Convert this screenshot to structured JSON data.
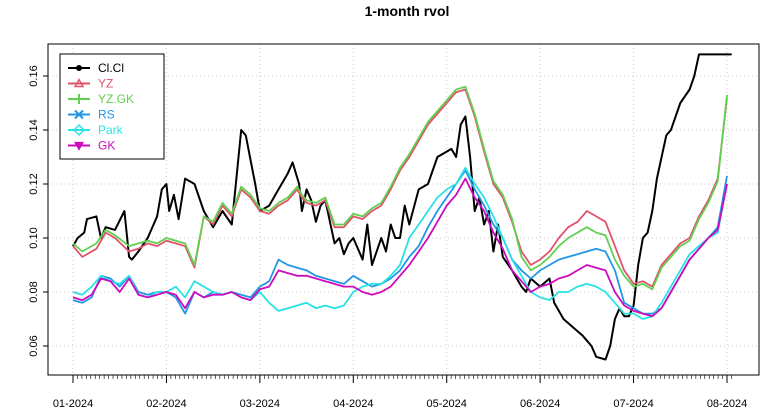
{
  "chart_data": {
    "type": "line",
    "title": "1-month rvol",
    "xlabel": "",
    "ylabel": "",
    "ylim": [
      0.05,
      0.17
    ],
    "yticks": [
      0.06,
      0.08,
      0.1,
      0.12,
      0.14,
      0.16
    ],
    "ytick_labels": [
      "0.06",
      "0.08",
      "0.10",
      "0.12",
      "0.14",
      "0.16"
    ],
    "xlim": [
      0,
      7.65
    ],
    "xticks": [
      0,
      1,
      2,
      3,
      4,
      5,
      6,
      7
    ],
    "xtick_labels": [
      "01-2024",
      "02-2024",
      "03-2024",
      "04-2024",
      "05-2024",
      "06-2024",
      "07-2024",
      "08-2024"
    ],
    "grid": true,
    "legend": {
      "position": "top-left"
    },
    "series": [
      {
        "name": "Cl.Cl",
        "color": "#000000",
        "marker": "circle",
        "x": [
          0,
          0.05,
          0.12,
          0.15,
          0.25,
          0.3,
          0.35,
          0.45,
          0.55,
          0.6,
          0.63,
          0.7,
          0.8,
          0.9,
          0.95,
          1.0,
          1.03,
          1.08,
          1.13,
          1.2,
          1.3,
          1.4,
          1.5,
          1.6,
          1.7,
          1.8,
          1.85,
          1.95,
          2.0,
          2.1,
          2.2,
          2.3,
          2.35,
          2.42,
          2.45,
          2.5,
          2.55,
          2.6,
          2.65,
          2.7,
          2.8,
          2.85,
          2.9,
          2.95,
          3.0,
          3.1,
          3.15,
          3.2,
          3.3,
          3.35,
          3.4,
          3.45,
          3.5,
          3.55,
          3.6,
          3.7,
          3.8,
          3.9,
          4.0,
          4.05,
          4.1,
          4.15,
          4.2,
          4.25,
          4.3,
          4.35,
          4.4,
          4.45,
          4.5,
          4.55,
          4.6,
          4.7,
          4.8,
          4.85,
          4.9,
          5.0,
          5.1,
          5.15,
          5.25,
          5.35,
          5.45,
          5.55,
          5.6,
          5.7,
          5.75,
          5.8,
          5.85,
          5.9,
          5.95,
          6.0,
          6.05,
          6.1,
          6.15,
          6.2,
          6.25,
          6.3,
          6.35,
          6.4,
          6.45,
          6.5,
          6.6,
          6.65,
          6.7,
          6.8,
          6.85,
          6.9,
          6.95,
          7.0,
          7.05
        ],
        "y": [
          0.097,
          0.1,
          0.102,
          0.107,
          0.108,
          0.1,
          0.104,
          0.103,
          0.11,
          0.093,
          0.092,
          0.095,
          0.1,
          0.108,
          0.118,
          0.12,
          0.11,
          0.116,
          0.107,
          0.122,
          0.12,
          0.11,
          0.104,
          0.11,
          0.105,
          0.14,
          0.138,
          0.12,
          0.11,
          0.112,
          0.118,
          0.124,
          0.128,
          0.12,
          0.11,
          0.118,
          0.114,
          0.106,
          0.112,
          0.114,
          0.098,
          0.1,
          0.094,
          0.098,
          0.1,
          0.092,
          0.105,
          0.09,
          0.1,
          0.095,
          0.105,
          0.1,
          0.1,
          0.112,
          0.105,
          0.118,
          0.12,
          0.13,
          0.132,
          0.133,
          0.13,
          0.142,
          0.145,
          0.13,
          0.11,
          0.115,
          0.105,
          0.11,
          0.095,
          0.105,
          0.093,
          0.088,
          0.082,
          0.08,
          0.085,
          0.082,
          0.085,
          0.076,
          0.07,
          0.067,
          0.064,
          0.06,
          0.056,
          0.055,
          0.06,
          0.07,
          0.074,
          0.071,
          0.071,
          0.075,
          0.09,
          0.1,
          0.102,
          0.11,
          0.122,
          0.13,
          0.138,
          0.14,
          0.145,
          0.15,
          0.155,
          0.16,
          0.168,
          0.168,
          0.168,
          0.168,
          0.168,
          0.168,
          0.168
        ]
      },
      {
        "name": "YZ",
        "color": "#DF536B",
        "marker": "triangle",
        "x": [
          0,
          0.1,
          0.25,
          0.35,
          0.45,
          0.6,
          0.7,
          0.8,
          0.9,
          1.0,
          1.1,
          1.2,
          1.3,
          1.4,
          1.5,
          1.6,
          1.7,
          1.8,
          1.9,
          2.0,
          2.1,
          2.2,
          2.3,
          2.4,
          2.45,
          2.5,
          2.6,
          2.7,
          2.8,
          2.9,
          3.0,
          3.1,
          3.2,
          3.3,
          3.4,
          3.5,
          3.6,
          3.7,
          3.8,
          3.9,
          4.0,
          4.1,
          4.2,
          4.3,
          4.4,
          4.5,
          4.6,
          4.7,
          4.8,
          4.9,
          5.0,
          5.1,
          5.2,
          5.3,
          5.4,
          5.5,
          5.6,
          5.7,
          5.8,
          5.9,
          6.0,
          6.1,
          6.2,
          6.3,
          6.4,
          6.5,
          6.6,
          6.7,
          6.8,
          6.9,
          7.0
        ],
        "y": [
          0.097,
          0.093,
          0.096,
          0.102,
          0.1,
          0.095,
          0.096,
          0.098,
          0.097,
          0.099,
          0.098,
          0.097,
          0.089,
          0.108,
          0.105,
          0.112,
          0.108,
          0.118,
          0.115,
          0.11,
          0.109,
          0.112,
          0.114,
          0.118,
          0.115,
          0.113,
          0.112,
          0.114,
          0.104,
          0.104,
          0.108,
          0.107,
          0.11,
          0.112,
          0.118,
          0.125,
          0.13,
          0.136,
          0.142,
          0.146,
          0.15,
          0.154,
          0.155,
          0.145,
          0.132,
          0.12,
          0.115,
          0.106,
          0.095,
          0.09,
          0.092,
          0.095,
          0.1,
          0.104,
          0.106,
          0.11,
          0.108,
          0.106,
          0.097,
          0.088,
          0.083,
          0.084,
          0.082,
          0.09,
          0.094,
          0.098,
          0.1,
          0.108,
          0.114,
          0.122,
          0.152
        ]
      },
      {
        "name": "YZ.GK",
        "color": "#61D04F",
        "marker": "plus",
        "x": [
          0,
          0.1,
          0.25,
          0.35,
          0.45,
          0.6,
          0.7,
          0.8,
          0.9,
          1.0,
          1.1,
          1.2,
          1.3,
          1.4,
          1.5,
          1.6,
          1.7,
          1.8,
          1.9,
          2.0,
          2.1,
          2.2,
          2.3,
          2.4,
          2.45,
          2.5,
          2.6,
          2.7,
          2.8,
          2.9,
          3.0,
          3.1,
          3.2,
          3.3,
          3.4,
          3.5,
          3.6,
          3.7,
          3.8,
          3.9,
          4.0,
          4.1,
          4.2,
          4.3,
          4.4,
          4.5,
          4.6,
          4.7,
          4.8,
          4.9,
          5.0,
          5.1,
          5.2,
          5.3,
          5.4,
          5.5,
          5.6,
          5.7,
          5.8,
          5.9,
          6.0,
          6.1,
          6.2,
          6.3,
          6.4,
          6.5,
          6.6,
          6.7,
          6.8,
          6.9,
          7.0
        ],
        "y": [
          0.098,
          0.095,
          0.098,
          0.103,
          0.101,
          0.097,
          0.098,
          0.099,
          0.098,
          0.1,
          0.099,
          0.098,
          0.09,
          0.108,
          0.106,
          0.113,
          0.109,
          0.119,
          0.116,
          0.111,
          0.11,
          0.113,
          0.115,
          0.119,
          0.116,
          0.114,
          0.113,
          0.115,
          0.105,
          0.105,
          0.109,
          0.108,
          0.111,
          0.113,
          0.119,
          0.126,
          0.131,
          0.137,
          0.143,
          0.147,
          0.151,
          0.155,
          0.156,
          0.146,
          0.133,
          0.121,
          0.116,
          0.107,
          0.093,
          0.088,
          0.09,
          0.093,
          0.097,
          0.1,
          0.102,
          0.104,
          0.102,
          0.101,
          0.092,
          0.086,
          0.082,
          0.083,
          0.081,
          0.089,
          0.093,
          0.097,
          0.099,
          0.107,
          0.113,
          0.121,
          0.153
        ]
      },
      {
        "name": "RS",
        "color": "#2297E6",
        "marker": "cross",
        "x": [
          0,
          0.1,
          0.2,
          0.3,
          0.4,
          0.5,
          0.6,
          0.7,
          0.8,
          0.9,
          1.0,
          1.1,
          1.2,
          1.3,
          1.4,
          1.5,
          1.6,
          1.7,
          1.8,
          1.9,
          2.0,
          2.1,
          2.2,
          2.3,
          2.4,
          2.5,
          2.6,
          2.7,
          2.8,
          2.9,
          3.0,
          3.1,
          3.2,
          3.3,
          3.4,
          3.5,
          3.6,
          3.7,
          3.8,
          3.9,
          4.0,
          4.1,
          4.2,
          4.3,
          4.4,
          4.5,
          4.6,
          4.7,
          4.8,
          4.9,
          5.0,
          5.1,
          5.2,
          5.3,
          5.4,
          5.5,
          5.6,
          5.7,
          5.8,
          5.9,
          6.0,
          6.1,
          6.2,
          6.3,
          6.4,
          6.5,
          6.6,
          6.7,
          6.8,
          6.9,
          7.0
        ],
        "y": [
          0.077,
          0.076,
          0.078,
          0.086,
          0.085,
          0.082,
          0.086,
          0.08,
          0.079,
          0.08,
          0.08,
          0.078,
          0.072,
          0.08,
          0.078,
          0.08,
          0.079,
          0.08,
          0.079,
          0.078,
          0.082,
          0.084,
          0.092,
          0.09,
          0.089,
          0.088,
          0.086,
          0.085,
          0.084,
          0.083,
          0.086,
          0.084,
          0.082,
          0.083,
          0.085,
          0.088,
          0.093,
          0.097,
          0.104,
          0.11,
          0.115,
          0.12,
          0.125,
          0.118,
          0.112,
          0.105,
          0.1,
          0.092,
          0.088,
          0.085,
          0.088,
          0.09,
          0.092,
          0.093,
          0.094,
          0.095,
          0.096,
          0.095,
          0.088,
          0.076,
          0.074,
          0.072,
          0.072,
          0.074,
          0.08,
          0.086,
          0.092,
          0.096,
          0.1,
          0.104,
          0.123
        ]
      },
      {
        "name": "Park",
        "color": "#28E2E5",
        "marker": "diamond",
        "x": [
          0,
          0.1,
          0.2,
          0.3,
          0.4,
          0.5,
          0.6,
          0.7,
          0.8,
          0.9,
          1.0,
          1.1,
          1.2,
          1.3,
          1.4,
          1.5,
          1.6,
          1.7,
          1.8,
          1.9,
          2.0,
          2.1,
          2.2,
          2.3,
          2.4,
          2.5,
          2.6,
          2.7,
          2.8,
          2.9,
          3.0,
          3.1,
          3.2,
          3.3,
          3.4,
          3.5,
          3.6,
          3.7,
          3.8,
          3.9,
          4.0,
          4.1,
          4.2,
          4.3,
          4.4,
          4.5,
          4.6,
          4.7,
          4.8,
          4.9,
          5.0,
          5.1,
          5.2,
          5.3,
          5.4,
          5.5,
          5.6,
          5.7,
          5.8,
          5.9,
          6.0,
          6.1,
          6.2,
          6.3,
          6.4,
          6.5,
          6.6,
          6.7,
          6.8,
          6.9,
          7.0
        ],
        "y": [
          0.08,
          0.079,
          0.082,
          0.086,
          0.084,
          0.083,
          0.086,
          0.079,
          0.078,
          0.08,
          0.08,
          0.082,
          0.078,
          0.084,
          0.082,
          0.08,
          0.079,
          0.08,
          0.078,
          0.077,
          0.08,
          0.076,
          0.073,
          0.074,
          0.075,
          0.076,
          0.074,
          0.075,
          0.074,
          0.075,
          0.08,
          0.082,
          0.083,
          0.083,
          0.086,
          0.09,
          0.1,
          0.105,
          0.11,
          0.115,
          0.118,
          0.12,
          0.126,
          0.12,
          0.115,
          0.108,
          0.1,
          0.092,
          0.086,
          0.08,
          0.078,
          0.077,
          0.08,
          0.08,
          0.082,
          0.083,
          0.082,
          0.08,
          0.076,
          0.072,
          0.072,
          0.07,
          0.071,
          0.076,
          0.082,
          0.088,
          0.094,
          0.097,
          0.1,
          0.102,
          0.12
        ]
      },
      {
        "name": "GK",
        "color": "#CD0BBC",
        "marker": "triangle-down",
        "x": [
          0,
          0.1,
          0.2,
          0.3,
          0.4,
          0.5,
          0.6,
          0.7,
          0.8,
          0.9,
          1.0,
          1.1,
          1.2,
          1.3,
          1.4,
          1.5,
          1.6,
          1.7,
          1.8,
          1.9,
          2.0,
          2.1,
          2.2,
          2.3,
          2.4,
          2.5,
          2.6,
          2.7,
          2.8,
          2.9,
          3.0,
          3.1,
          3.2,
          3.3,
          3.4,
          3.5,
          3.6,
          3.7,
          3.8,
          3.9,
          4.0,
          4.1,
          4.2,
          4.3,
          4.4,
          4.5,
          4.6,
          4.7,
          4.8,
          4.9,
          5.0,
          5.1,
          5.2,
          5.3,
          5.4,
          5.5,
          5.6,
          5.7,
          5.8,
          5.9,
          6.0,
          6.1,
          6.2,
          6.3,
          6.4,
          6.5,
          6.6,
          6.7,
          6.8,
          6.9,
          7.0
        ],
        "y": [
          0.078,
          0.077,
          0.079,
          0.085,
          0.084,
          0.08,
          0.085,
          0.079,
          0.078,
          0.079,
          0.08,
          0.079,
          0.074,
          0.08,
          0.078,
          0.079,
          0.079,
          0.08,
          0.078,
          0.077,
          0.081,
          0.082,
          0.088,
          0.087,
          0.086,
          0.086,
          0.085,
          0.084,
          0.083,
          0.082,
          0.082,
          0.08,
          0.079,
          0.08,
          0.082,
          0.086,
          0.09,
          0.095,
          0.1,
          0.106,
          0.112,
          0.116,
          0.122,
          0.115,
          0.11,
          0.102,
          0.096,
          0.088,
          0.084,
          0.08,
          0.082,
          0.083,
          0.085,
          0.086,
          0.088,
          0.09,
          0.089,
          0.088,
          0.08,
          0.075,
          0.073,
          0.072,
          0.071,
          0.074,
          0.08,
          0.086,
          0.092,
          0.096,
          0.1,
          0.103,
          0.12
        ]
      }
    ]
  }
}
